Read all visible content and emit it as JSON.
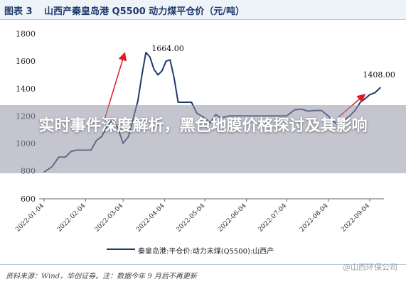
{
  "header": {
    "figure_label": "图表 3",
    "title": "山西产秦皇岛港 Q5500 动力煤平仓价（元/吨）"
  },
  "overlay": {
    "headline": "实时事件深度解析，黑色地膜价格探讨及其影响"
  },
  "source": "资料来源：Wind，华创证券。注：数据今年 9 月后不再更新",
  "watermark": "@山西环保公司",
  "colors": {
    "series": "#1f3a6b",
    "arrow": "#e01b24"
  },
  "chart_data": {
    "type": "line",
    "x_axis": "date",
    "x_ticks": [
      "2022-01-04",
      "2022-02-04",
      "2022-03-04",
      "2022-04-04",
      "2022-05-04",
      "2022-06-04",
      "2022-07-04",
      "2022-08-04",
      "2022-09-04"
    ],
    "y_ticks": [
      600,
      800,
      1000,
      1200,
      1400,
      1600,
      1800
    ],
    "ylim": [
      600,
      1850
    ],
    "grid": false,
    "legend_position": "bottom",
    "series": [
      {
        "name": "秦皇岛港:平仓价:动力末煤(Q5500):山西产",
        "points": [
          [
            "2022-01-04",
            790
          ],
          [
            "2022-01-10",
            830
          ],
          [
            "2022-01-15",
            900
          ],
          [
            "2022-01-20",
            900
          ],
          [
            "2022-01-24",
            940
          ],
          [
            "2022-01-28",
            950
          ],
          [
            "2022-02-04",
            950
          ],
          [
            "2022-02-08",
            950
          ],
          [
            "2022-02-12",
            1020
          ],
          [
            "2022-02-16",
            1050
          ],
          [
            "2022-02-20",
            1120
          ],
          [
            "2022-02-24",
            1180
          ],
          [
            "2022-02-28",
            1110
          ],
          [
            "2022-03-04",
            1000
          ],
          [
            "2022-03-08",
            1050
          ],
          [
            "2022-03-12",
            1200
          ],
          [
            "2022-03-15",
            1310
          ],
          [
            "2022-03-18",
            1500
          ],
          [
            "2022-03-21",
            1664
          ],
          [
            "2022-03-24",
            1630
          ],
          [
            "2022-03-27",
            1540
          ],
          [
            "2022-03-30",
            1500
          ],
          [
            "2022-04-02",
            1530
          ],
          [
            "2022-04-05",
            1600
          ],
          [
            "2022-04-08",
            1610
          ],
          [
            "2022-04-11",
            1480
          ],
          [
            "2022-04-14",
            1300
          ],
          [
            "2022-04-18",
            1300
          ],
          [
            "2022-04-24",
            1300
          ],
          [
            "2022-04-28",
            1220
          ],
          [
            "2022-05-04",
            1185
          ],
          [
            "2022-05-08",
            1150
          ],
          [
            "2022-05-12",
            1210
          ],
          [
            "2022-05-16",
            1185
          ],
          [
            "2022-05-22",
            1200
          ],
          [
            "2022-05-28",
            1200
          ],
          [
            "2022-06-04",
            1200
          ],
          [
            "2022-06-20",
            1200
          ],
          [
            "2022-07-04",
            1200
          ],
          [
            "2022-07-10",
            1245
          ],
          [
            "2022-07-15",
            1250
          ],
          [
            "2022-07-20",
            1235
          ],
          [
            "2022-07-25",
            1240
          ],
          [
            "2022-07-30",
            1240
          ],
          [
            "2022-08-04",
            1200
          ],
          [
            "2022-08-08",
            1160
          ],
          [
            "2022-08-12",
            1130
          ],
          [
            "2022-08-16",
            1170
          ],
          [
            "2022-08-20",
            1200
          ],
          [
            "2022-08-24",
            1240
          ],
          [
            "2022-08-28",
            1300
          ],
          [
            "2022-09-01",
            1330
          ],
          [
            "2022-09-04",
            1355
          ],
          [
            "2022-09-08",
            1370
          ],
          [
            "2022-09-12",
            1408
          ]
        ]
      }
    ],
    "annotations": [
      {
        "date": "2022-03-21",
        "value": 1664,
        "label": "1664.00"
      },
      {
        "date": "2022-09-12",
        "value": 1408,
        "label": "1408.00"
      }
    ]
  }
}
